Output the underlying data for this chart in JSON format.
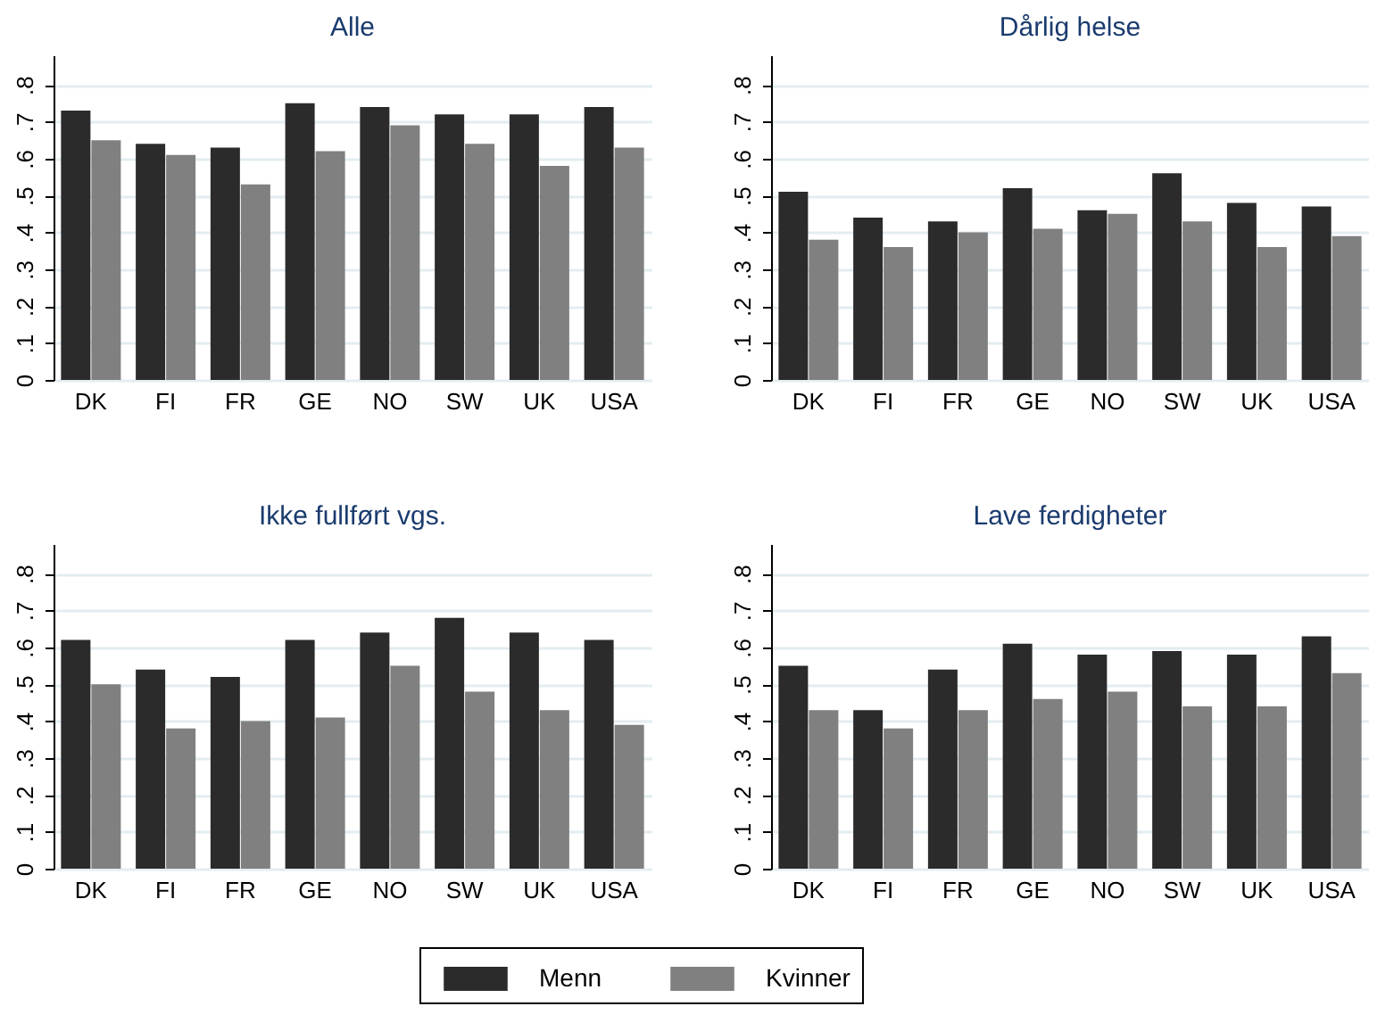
{
  "chart_data": [
    {
      "type": "bar",
      "title": "Alle",
      "categories": [
        "DK",
        "FI",
        "FR",
        "GE",
        "NO",
        "SW",
        "UK",
        "USA"
      ],
      "series": [
        {
          "name": "Menn",
          "color": "#2b2b2b",
          "values": [
            0.73,
            0.64,
            0.63,
            0.75,
            0.74,
            0.72,
            0.72,
            0.74
          ]
        },
        {
          "name": "Kvinner",
          "color": "#808080",
          "values": [
            0.65,
            0.61,
            0.53,
            0.62,
            0.69,
            0.64,
            0.58,
            0.63
          ]
        }
      ],
      "ylim": [
        0,
        0.88
      ],
      "yticks": [
        {
          "value": 0,
          "label": "0"
        },
        {
          "value": 0.1,
          "label": ".1"
        },
        {
          "value": 0.2,
          "label": ".2"
        },
        {
          "value": 0.3,
          "label": ".3"
        },
        {
          "value": 0.4,
          "label": ".4"
        },
        {
          "value": 0.5,
          "label": ".5"
        },
        {
          "value": 0.6,
          "label": ".6"
        },
        {
          "value": 0.7,
          "label": ".7"
        },
        {
          "value": 0.8,
          "label": ".8"
        }
      ],
      "grid": "y",
      "legend": "bottom"
    },
    {
      "type": "bar",
      "title": "Dårlig helse",
      "categories": [
        "DK",
        "FI",
        "FR",
        "GE",
        "NO",
        "SW",
        "UK",
        "USA"
      ],
      "series": [
        {
          "name": "Menn",
          "color": "#2b2b2b",
          "values": [
            0.51,
            0.44,
            0.43,
            0.52,
            0.46,
            0.56,
            0.48,
            0.47
          ]
        },
        {
          "name": "Kvinner",
          "color": "#808080",
          "values": [
            0.38,
            0.36,
            0.4,
            0.41,
            0.45,
            0.43,
            0.36,
            0.39
          ]
        }
      ],
      "ylim": [
        0,
        0.88
      ],
      "yticks": [
        {
          "value": 0,
          "label": "0"
        },
        {
          "value": 0.1,
          "label": ".1"
        },
        {
          "value": 0.2,
          "label": ".2"
        },
        {
          "value": 0.3,
          "label": ".3"
        },
        {
          "value": 0.4,
          "label": ".4"
        },
        {
          "value": 0.5,
          "label": ".5"
        },
        {
          "value": 0.6,
          "label": ".6"
        },
        {
          "value": 0.7,
          "label": ".7"
        },
        {
          "value": 0.8,
          "label": ".8"
        }
      ],
      "grid": "y",
      "legend": "bottom"
    },
    {
      "type": "bar",
      "title": "Ikke fullført vgs.",
      "categories": [
        "DK",
        "FI",
        "FR",
        "GE",
        "NO",
        "SW",
        "UK",
        "USA"
      ],
      "series": [
        {
          "name": "Menn",
          "color": "#2b2b2b",
          "values": [
            0.62,
            0.54,
            0.52,
            0.62,
            0.64,
            0.68,
            0.64,
            0.62
          ]
        },
        {
          "name": "Kvinner",
          "color": "#808080",
          "values": [
            0.5,
            0.38,
            0.4,
            0.41,
            0.55,
            0.48,
            0.43,
            0.39
          ]
        }
      ],
      "ylim": [
        0,
        0.88
      ],
      "yticks": [
        {
          "value": 0,
          "label": "0"
        },
        {
          "value": 0.1,
          "label": ".1"
        },
        {
          "value": 0.2,
          "label": ".2"
        },
        {
          "value": 0.3,
          "label": ".3"
        },
        {
          "value": 0.4,
          "label": ".4"
        },
        {
          "value": 0.5,
          "label": ".5"
        },
        {
          "value": 0.6,
          "label": ".6"
        },
        {
          "value": 0.7,
          "label": ".7"
        },
        {
          "value": 0.8,
          "label": ".8"
        }
      ],
      "grid": "y",
      "legend": "bottom"
    },
    {
      "type": "bar",
      "title": "Lave ferdigheter",
      "categories": [
        "DK",
        "FI",
        "FR",
        "GE",
        "NO",
        "SW",
        "UK",
        "USA"
      ],
      "series": [
        {
          "name": "Menn",
          "color": "#2b2b2b",
          "values": [
            0.55,
            0.43,
            0.54,
            0.61,
            0.58,
            0.59,
            0.58,
            0.63
          ]
        },
        {
          "name": "Kvinner",
          "color": "#808080",
          "values": [
            0.43,
            0.38,
            0.43,
            0.46,
            0.48,
            0.44,
            0.44,
            0.53
          ]
        }
      ],
      "ylim": [
        0,
        0.88
      ],
      "yticks": [
        {
          "value": 0,
          "label": "0"
        },
        {
          "value": 0.1,
          "label": ".1"
        },
        {
          "value": 0.2,
          "label": ".2"
        },
        {
          "value": 0.3,
          "label": ".3"
        },
        {
          "value": 0.4,
          "label": ".4"
        },
        {
          "value": 0.5,
          "label": ".5"
        },
        {
          "value": 0.6,
          "label": ".6"
        },
        {
          "value": 0.7,
          "label": ".7"
        },
        {
          "value": 0.8,
          "label": ".8"
        }
      ],
      "grid": "y",
      "legend": "bottom"
    }
  ]
}
